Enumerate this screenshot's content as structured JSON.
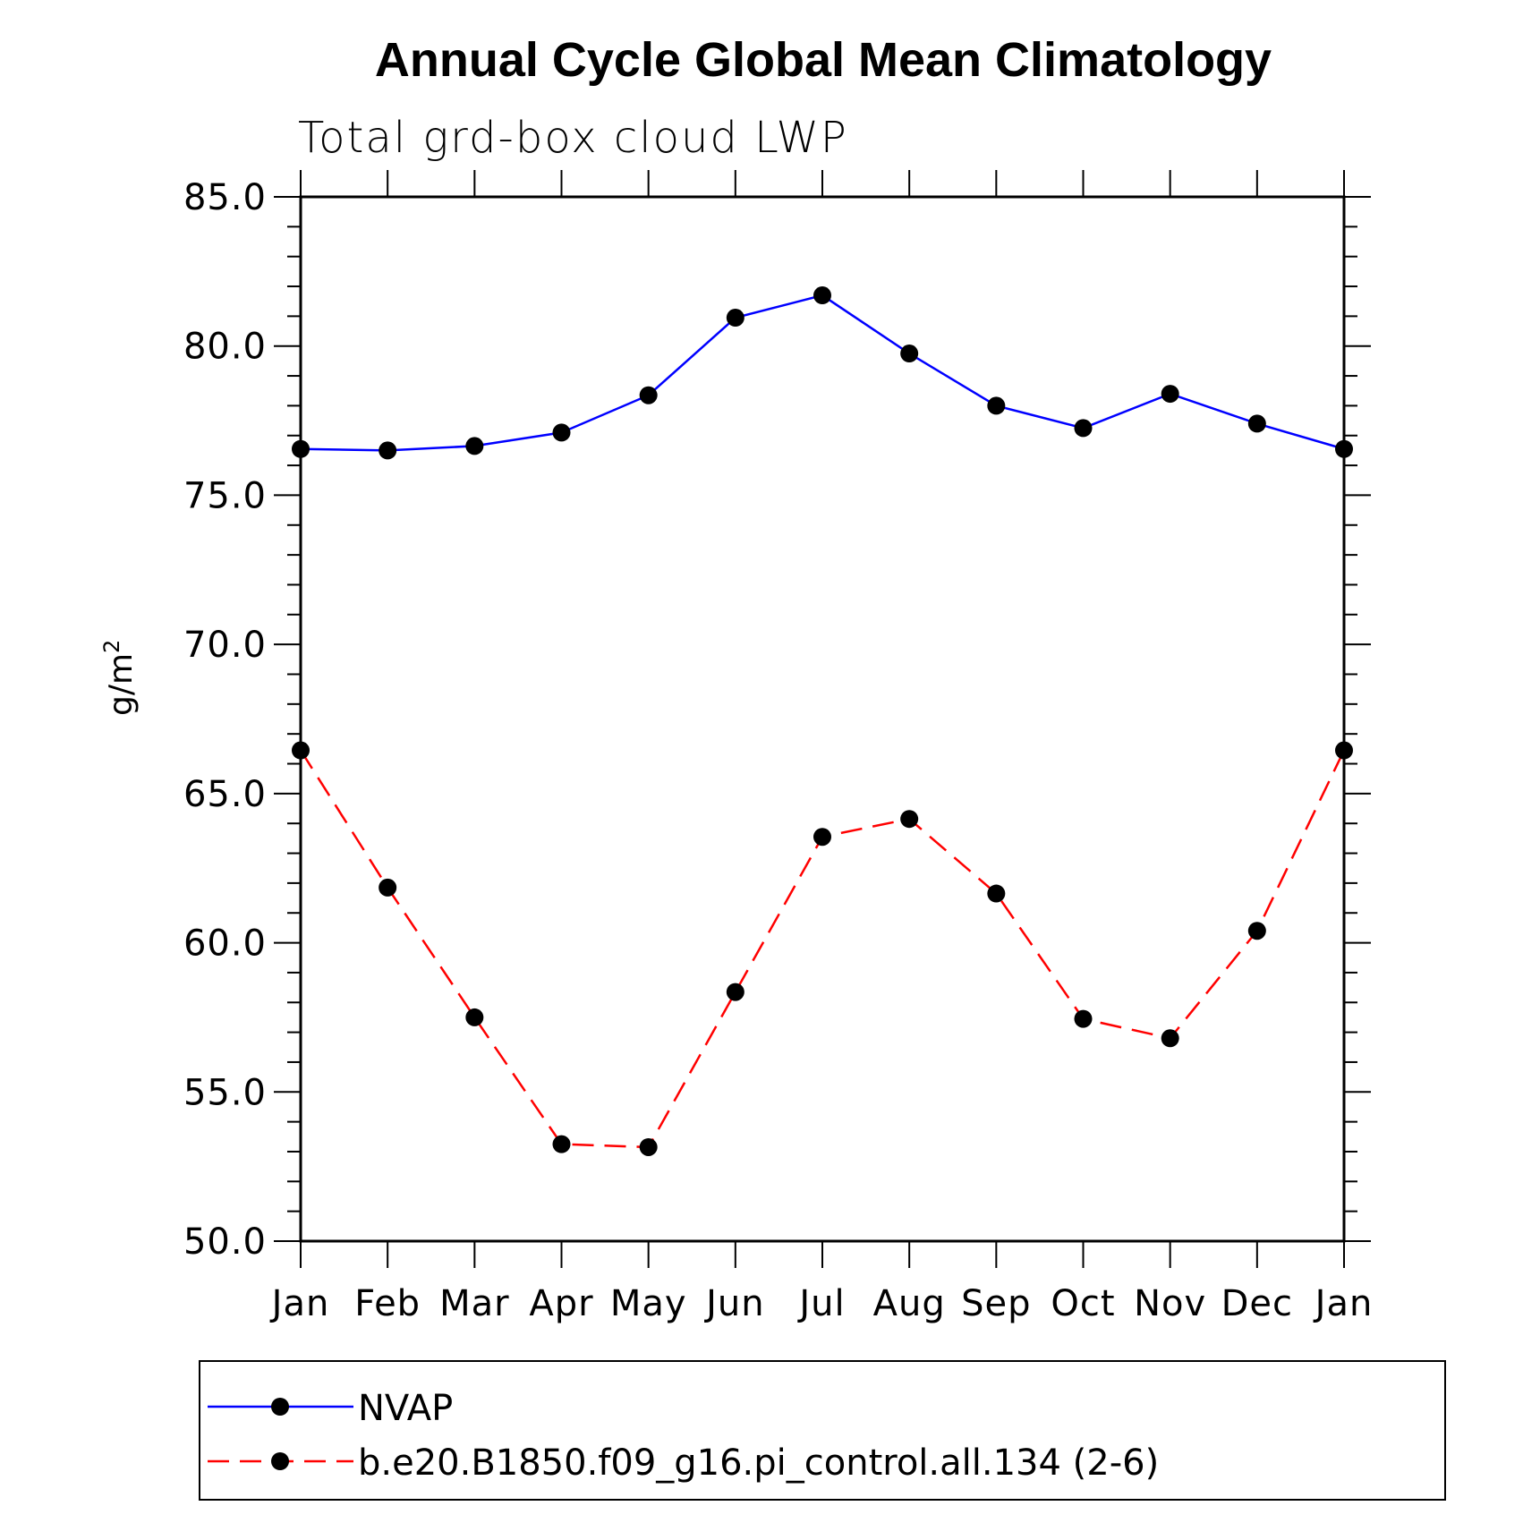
{
  "chart_data": {
    "type": "line",
    "title": "Annual Cycle Global Mean Climatology",
    "subtitle": "Total grd-box cloud LWP",
    "ylabel": "g/m",
    "ylabel_sup": "2",
    "categories": [
      "Jan",
      "Feb",
      "Mar",
      "Apr",
      "May",
      "Jun",
      "Jul",
      "Aug",
      "Sep",
      "Oct",
      "Nov",
      "Dec",
      "Jan"
    ],
    "ylim": [
      50.0,
      85.0
    ],
    "yticks": [
      "50.0",
      "55.0",
      "60.0",
      "65.0",
      "70.0",
      "75.0",
      "80.0",
      "85.0"
    ],
    "grid": false,
    "legend_position": "bottom",
    "series": [
      {
        "name": "NVAP",
        "color": "#0000ff",
        "dash": "solid",
        "marker": "filled-circle",
        "values": [
          76.55,
          76.5,
          76.65,
          77.1,
          78.35,
          80.95,
          81.7,
          79.75,
          78.0,
          77.25,
          78.4,
          77.4,
          76.55
        ]
      },
      {
        "name": "b.e20.B1850.f09_g16.pi_control.all.134 (2-6)",
        "color": "#ff0000",
        "dash": "dashed",
        "marker": "filled-circle",
        "values": [
          66.45,
          61.85,
          57.5,
          53.25,
          53.15,
          58.35,
          63.55,
          64.15,
          61.65,
          57.45,
          56.8,
          60.4,
          66.45
        ]
      }
    ]
  }
}
